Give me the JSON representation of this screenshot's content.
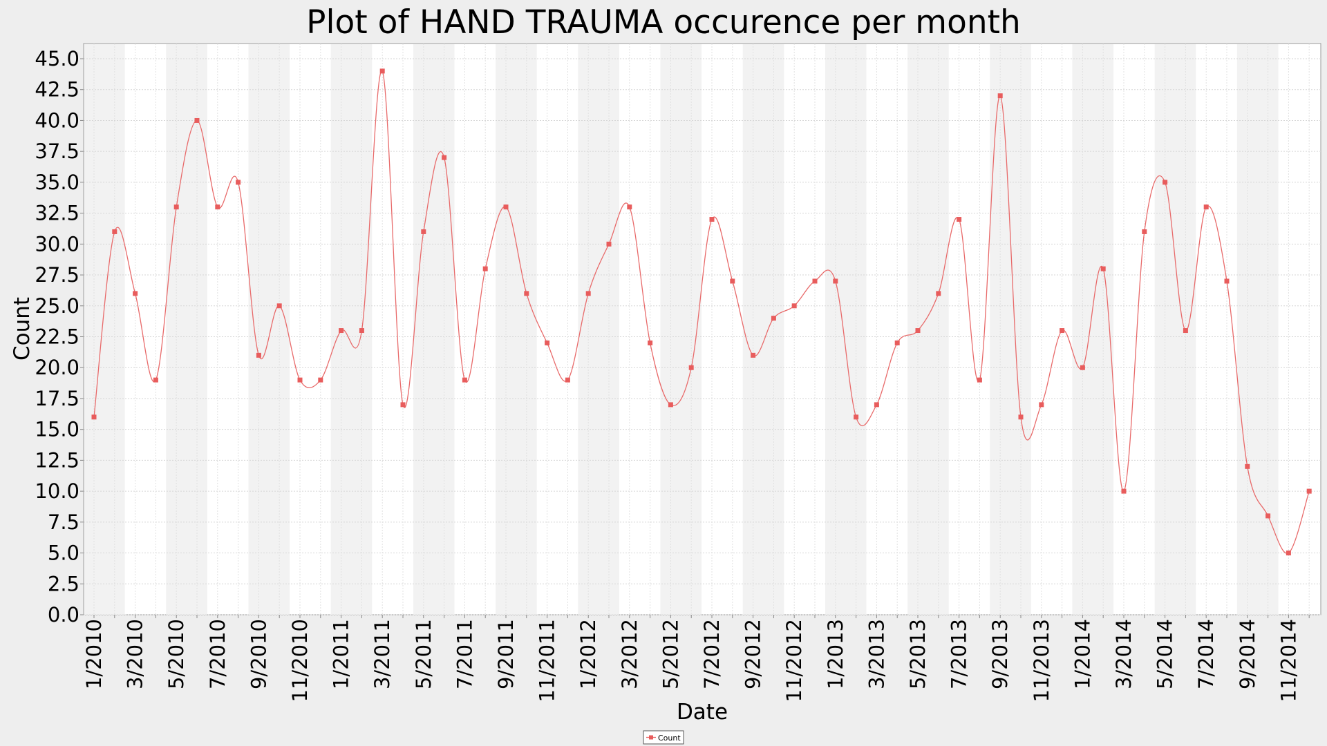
{
  "chart_data": {
    "type": "line",
    "title": "Plot of HAND TRAUMA occurence per month",
    "xlabel": "Date",
    "ylabel": "Count",
    "ylim": [
      0,
      45
    ],
    "y_ticks": [
      "0.0",
      "2.5",
      "5.0",
      "7.5",
      "10.0",
      "12.5",
      "15.0",
      "17.5",
      "20.0",
      "22.5",
      "25.0",
      "27.5",
      "30.0",
      "32.5",
      "35.0",
      "37.5",
      "40.0",
      "42.5",
      "45.0"
    ],
    "x_tick_labels": [
      "1/2010",
      "3/2010",
      "5/2010",
      "7/2010",
      "9/2010",
      "11/2010",
      "1/2011",
      "3/2011",
      "5/2011",
      "7/2011",
      "9/2011",
      "11/2011",
      "1/2012",
      "3/2012",
      "5/2012",
      "7/2012",
      "9/2012",
      "11/2012",
      "1/2013",
      "3/2013",
      "5/2013",
      "7/2013",
      "9/2013",
      "11/2013",
      "1/2014",
      "3/2014",
      "5/2014",
      "7/2014",
      "9/2014",
      "11/2014"
    ],
    "grid": true,
    "legend_position": "bottom-center",
    "series": [
      {
        "name": "Count",
        "color": "#e85c5c",
        "x": [
          "1/2010",
          "2/2010",
          "3/2010",
          "4/2010",
          "5/2010",
          "6/2010",
          "7/2010",
          "8/2010",
          "9/2010",
          "10/2010",
          "11/2010",
          "12/2010",
          "1/2011",
          "2/2011",
          "3/2011",
          "4/2011",
          "5/2011",
          "6/2011",
          "7/2011",
          "8/2011",
          "9/2011",
          "10/2011",
          "11/2011",
          "12/2011",
          "1/2012",
          "2/2012",
          "3/2012",
          "4/2012",
          "5/2012",
          "6/2012",
          "7/2012",
          "8/2012",
          "9/2012",
          "10/2012",
          "11/2012",
          "12/2012",
          "1/2013",
          "2/2013",
          "3/2013",
          "4/2013",
          "5/2013",
          "6/2013",
          "7/2013",
          "8/2013",
          "9/2013",
          "10/2013",
          "11/2013",
          "12/2013",
          "1/2014",
          "2/2014",
          "3/2014",
          "4/2014",
          "5/2014",
          "6/2014",
          "7/2014",
          "8/2014",
          "9/2014",
          "10/2014",
          "11/2014",
          "12/2014"
        ],
        "values": [
          16,
          31,
          26,
          19,
          33,
          40,
          33,
          35,
          21,
          25,
          19,
          19,
          23,
          23,
          44,
          17,
          31,
          37,
          19,
          28,
          33,
          26,
          22,
          19,
          26,
          30,
          33,
          22,
          17,
          20,
          32,
          27,
          21,
          24,
          25,
          27,
          27,
          16,
          17,
          22,
          23,
          26,
          32,
          19,
          42,
          16,
          17,
          23,
          20,
          28,
          10,
          31,
          35,
          23,
          33,
          27,
          12,
          8,
          5,
          10
        ]
      }
    ]
  }
}
